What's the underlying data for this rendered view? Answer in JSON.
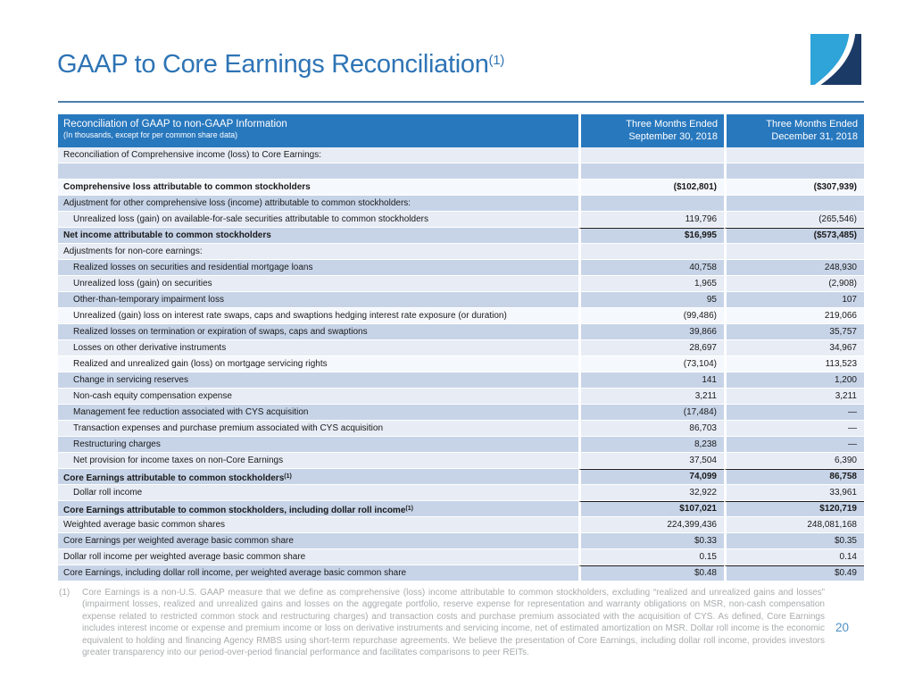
{
  "page": {
    "title": "GAAP to Core Earnings Reconciliation",
    "title_superscript": "(1)",
    "page_number": "20"
  },
  "logo": {
    "description": "square swoosh logo, light blue and navy halves divided by white curve",
    "light_blue": "#2FA4D9",
    "navy": "#1B3A66"
  },
  "colors": {
    "title_blue": "#2E74B5",
    "header_blue": "#2878BE",
    "band_light": "#E7ECF5",
    "band_medium": "#C7D4E8",
    "band_white": "#F5F8FC",
    "rule_blue": "#4F7FAC",
    "footnote_gray": "#A8ABAD",
    "page_number_blue": "#4D8FC4"
  },
  "table": {
    "header": {
      "title": "Reconciliation of GAAP to non-GAAP Information",
      "subtitle": "(In thousands, except for per common share data)",
      "col1_line1": "Three Months Ended",
      "col1_line2": "September 30, 2018",
      "col2_line1": "Three Months Ended",
      "col2_line2": "December 31, 2018"
    },
    "rows": [
      {
        "label": "Reconciliation of Comprehensive income (loss) to Core Earnings:",
        "sup": "",
        "indent": false,
        "bold": false,
        "topline": false,
        "shade": "light",
        "v1": "",
        "v2": ""
      },
      {
        "label": "",
        "sup": "",
        "indent": false,
        "bold": false,
        "topline": false,
        "shade": "medium",
        "v1": "",
        "v2": ""
      },
      {
        "label": "Comprehensive loss attributable to common stockholders",
        "sup": "",
        "indent": false,
        "bold": true,
        "topline": false,
        "shade": "white",
        "v1": "($102,801)",
        "v2": "($307,939)"
      },
      {
        "label": "Adjustment for other comprehensive loss (income) attributable to common stockholders:",
        "sup": "",
        "indent": false,
        "bold": false,
        "topline": false,
        "shade": "medium",
        "v1": "",
        "v2": ""
      },
      {
        "label": "Unrealized loss (gain) on available-for-sale securities attributable to common stockholders",
        "sup": "",
        "indent": true,
        "bold": false,
        "topline": false,
        "shade": "light",
        "v1": "119,796",
        "v2": "(265,546)"
      },
      {
        "label": "Net income attributable to common stockholders",
        "sup": "",
        "indent": false,
        "bold": true,
        "topline": true,
        "shade": "medium",
        "v1": "$16,995",
        "v2": "($573,485)"
      },
      {
        "label": "Adjustments for non-core earnings:",
        "sup": "",
        "indent": false,
        "bold": false,
        "topline": false,
        "shade": "light",
        "v1": "",
        "v2": ""
      },
      {
        "label": "Realized losses on securities and residential mortgage loans",
        "sup": "",
        "indent": true,
        "bold": false,
        "topline": false,
        "shade": "medium",
        "v1": "40,758",
        "v2": "248,930"
      },
      {
        "label": "Unrealized loss (gain) on securities",
        "sup": "",
        "indent": true,
        "bold": false,
        "topline": false,
        "shade": "light",
        "v1": "1,965",
        "v2": "(2,908)"
      },
      {
        "label": "Other-than-temporary impairment loss",
        "sup": "",
        "indent": true,
        "bold": false,
        "topline": false,
        "shade": "medium",
        "v1": "95",
        "v2": "107"
      },
      {
        "label": "Unrealized (gain) loss on interest rate swaps, caps and swaptions hedging interest rate exposure (or duration)",
        "sup": "",
        "indent": true,
        "bold": false,
        "topline": false,
        "shade": "white",
        "v1": "(99,486)",
        "v2": "219,066"
      },
      {
        "label": "Realized losses on termination or expiration of swaps, caps and swaptions",
        "sup": "",
        "indent": true,
        "bold": false,
        "topline": false,
        "shade": "medium",
        "v1": "39,866",
        "v2": "35,757"
      },
      {
        "label": "Losses on other derivative instruments",
        "sup": "",
        "indent": true,
        "bold": false,
        "topline": false,
        "shade": "light",
        "v1": "28,697",
        "v2": "34,967"
      },
      {
        "label": "Realized and unrealized gain (loss) on mortgage servicing rights",
        "sup": "",
        "indent": true,
        "bold": false,
        "topline": false,
        "shade": "white",
        "v1": "(73,104)",
        "v2": "113,523"
      },
      {
        "label": "Change in servicing reserves",
        "sup": "",
        "indent": true,
        "bold": false,
        "topline": false,
        "shade": "medium",
        "v1": "141",
        "v2": "1,200"
      },
      {
        "label": "Non-cash equity compensation expense",
        "sup": "",
        "indent": true,
        "bold": false,
        "topline": false,
        "shade": "light",
        "v1": "3,211",
        "v2": "3,211"
      },
      {
        "label": "Management fee reduction associated with CYS acquisition",
        "sup": "",
        "indent": true,
        "bold": false,
        "topline": false,
        "shade": "medium",
        "v1": "(17,484)",
        "v2": "—"
      },
      {
        "label": "Transaction expenses and purchase premium associated with CYS acquisition",
        "sup": "",
        "indent": true,
        "bold": false,
        "topline": false,
        "shade": "light",
        "v1": "86,703",
        "v2": "—"
      },
      {
        "label": "Restructuring charges",
        "sup": "",
        "indent": true,
        "bold": false,
        "topline": false,
        "shade": "medium",
        "v1": "8,238",
        "v2": "—"
      },
      {
        "label": "Net provision for income taxes on non-Core Earnings",
        "sup": "",
        "indent": true,
        "bold": false,
        "topline": false,
        "shade": "light",
        "v1": "37,504",
        "v2": "6,390"
      },
      {
        "label": "Core Earnings attributable to common stockholders",
        "sup": "(1)",
        "indent": false,
        "bold": true,
        "topline": true,
        "shade": "medium",
        "v1": "74,099",
        "v2": "86,758"
      },
      {
        "label": "Dollar roll income",
        "sup": "",
        "indent": true,
        "bold": false,
        "topline": false,
        "shade": "light",
        "v1": "32,922",
        "v2": "33,961"
      },
      {
        "label": "Core Earnings attributable to common stockholders, including dollar roll income",
        "sup": "(1)",
        "indent": false,
        "bold": true,
        "topline": true,
        "shade": "medium",
        "v1": "$107,021",
        "v2": "$120,719"
      },
      {
        "label": "Weighted average basic common shares",
        "sup": "",
        "indent": false,
        "bold": false,
        "topline": false,
        "shade": "light",
        "v1": "224,399,436",
        "v2": "248,081,168"
      },
      {
        "label": "Core Earnings per weighted average basic common share",
        "sup": "",
        "indent": false,
        "bold": false,
        "topline": false,
        "shade": "medium",
        "v1": "$0.33",
        "v2": "$0.35"
      },
      {
        "label": "Dollar roll income per weighted average basic common share",
        "sup": "",
        "indent": false,
        "bold": false,
        "topline": false,
        "shade": "light",
        "v1": "0.15",
        "v2": "0.14"
      },
      {
        "label": "Core Earnings, including dollar roll income, per weighted average basic common share",
        "sup": "",
        "indent": false,
        "bold": false,
        "topline": true,
        "shade": "medium",
        "v1": "$0.48",
        "v2": "$0.49"
      }
    ]
  },
  "footnote": {
    "marker": "(1)",
    "text": "Core Earnings is a non-U.S. GAAP measure that we define as comprehensive (loss) income attributable to common stockholders, excluding “realized and unrealized gains and losses” (impairment losses, realized and unrealized gains and losses on the aggregate portfolio, reserve expense for representation and warranty obligations on MSR,  non-cash compensation expense related to restricted common stock and restructuring charges) and transaction costs and purchase premium associated with the acquisition of CYS. As defined, Core Earnings includes interest income or expense and premium income or loss on derivative instruments and servicing income, net of estimated amortization on MSR. Dollar roll income is the economic equivalent to holding and financing Agency RMBS using short-term repurchase agreements. We believe the presentation of Core Earnings, including dollar roll income, provides investors greater transparency into our period-over-period financial performance and facilitates comparisons to peer REITs."
  }
}
